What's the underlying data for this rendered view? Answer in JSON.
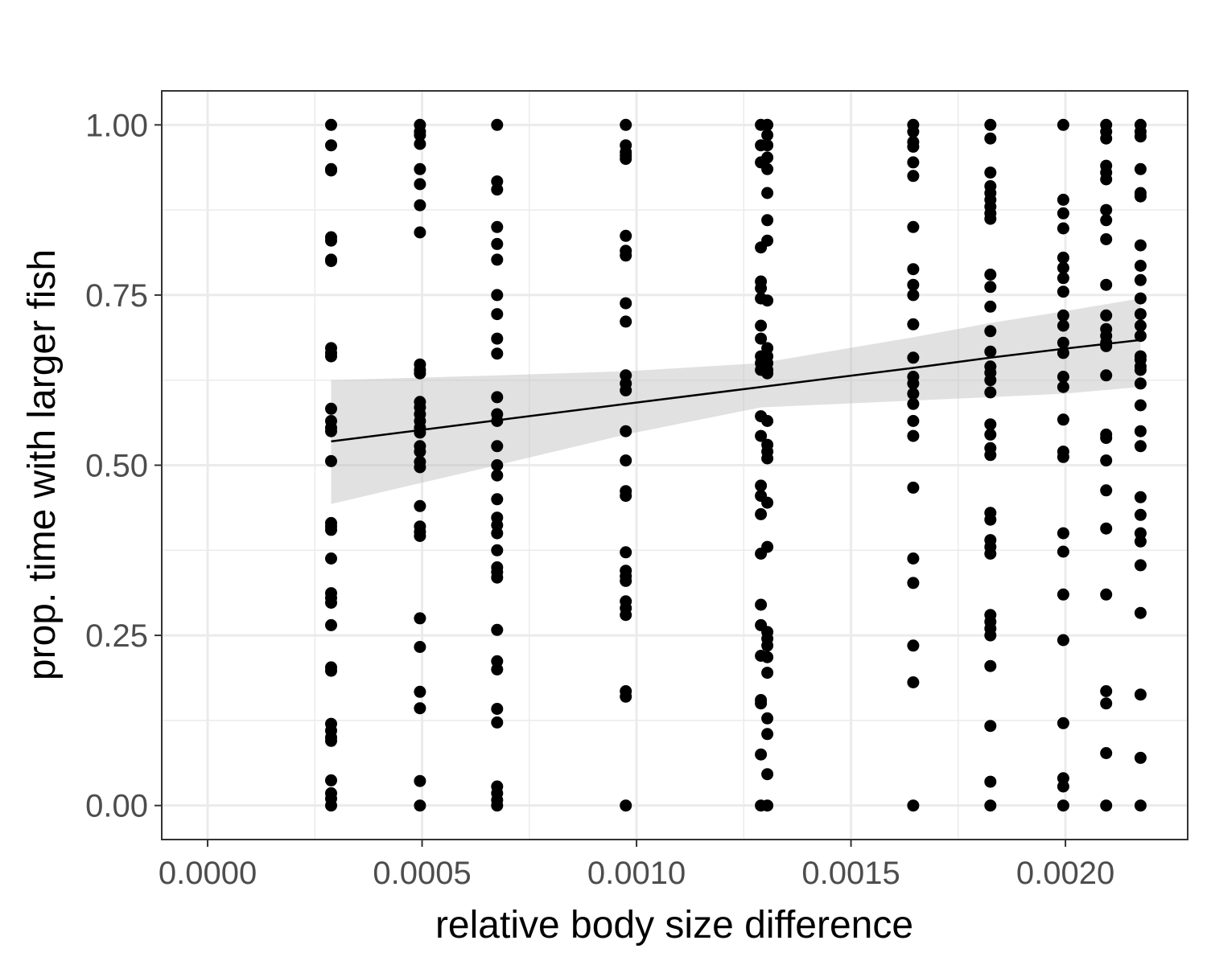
{
  "chart_data": {
    "type": "scatter",
    "title": "",
    "xlabel": "relative body size difference",
    "ylabel": "prop. time with larger fish",
    "xlim": [
      -0.000107,
      0.002285
    ],
    "ylim": [
      -0.05,
      1.05
    ],
    "x_ticks": [
      0.0,
      0.0005,
      0.001,
      0.0015,
      0.002
    ],
    "x_tick_labels": [
      "0.0000",
      "0.0005",
      "0.0010",
      "0.0015",
      "0.0020"
    ],
    "y_ticks": [
      0.0,
      0.25,
      0.5,
      0.75,
      1.0
    ],
    "y_tick_labels": [
      "0.00",
      "0.25",
      "0.50",
      "0.75",
      "1.00"
    ],
    "grid": true,
    "theme": "black-and-white",
    "colors": {
      "points": "#000000",
      "fit_line": "#000000",
      "ribbon": "#bdbdbd",
      "grid": "#ebebeb",
      "panel_border": "#333333"
    },
    "groups": [
      {
        "x": 0.000288,
        "y": [
          1.0,
          0.97,
          0.935,
          0.933,
          0.835,
          0.83,
          0.802,
          0.8,
          0.672,
          0.665,
          0.66,
          0.583,
          0.565,
          0.555,
          0.55,
          0.506,
          0.415,
          0.41,
          0.405,
          0.363,
          0.312,
          0.305,
          0.298,
          0.265,
          0.203,
          0.198,
          0.12,
          0.11,
          0.1,
          0.095,
          0.037,
          0.018,
          0.01,
          0.0
        ]
      },
      {
        "x": 0.000495,
        "y": [
          1.0,
          0.99,
          0.985,
          0.972,
          0.935,
          0.913,
          0.882,
          0.842,
          0.648,
          0.64,
          0.635,
          0.593,
          0.585,
          0.575,
          0.565,
          0.555,
          0.548,
          0.528,
          0.52,
          0.505,
          0.497,
          0.44,
          0.41,
          0.402,
          0.396,
          0.275,
          0.233,
          0.167,
          0.143,
          0.036,
          0.0
        ]
      },
      {
        "x": 0.000675,
        "y": [
          1.0,
          0.917,
          0.905,
          0.85,
          0.825,
          0.802,
          0.75,
          0.722,
          0.686,
          0.664,
          0.6,
          0.575,
          0.565,
          0.528,
          0.5,
          0.485,
          0.45,
          0.423,
          0.412,
          0.4,
          0.375,
          0.35,
          0.343,
          0.335,
          0.258,
          0.212,
          0.2,
          0.142,
          0.122,
          0.028,
          0.018,
          0.008,
          0.0
        ]
      },
      {
        "x": 0.000975,
        "y": [
          1.0,
          0.97,
          0.96,
          0.955,
          0.95,
          0.837,
          0.815,
          0.808,
          0.738,
          0.711,
          0.632,
          0.62,
          0.61,
          0.55,
          0.507,
          0.462,
          0.455,
          0.372,
          0.345,
          0.337,
          0.33,
          0.3,
          0.29,
          0.28,
          0.168,
          0.16,
          0.0
        ]
      },
      {
        "x": 0.00129,
        "y": [
          1.0,
          0.97,
          0.945,
          0.82,
          0.77,
          0.76,
          0.745,
          0.705,
          0.686,
          0.66,
          0.65,
          0.64,
          0.572,
          0.543,
          0.47,
          0.455,
          0.428,
          0.37,
          0.295,
          0.265,
          0.22,
          0.155,
          0.15,
          0.075,
          0.0
        ]
      },
      {
        "x": 0.001305,
        "y": [
          1.0,
          0.985,
          0.97,
          0.952,
          0.935,
          0.9,
          0.86,
          0.83,
          0.742,
          0.672,
          0.66,
          0.65,
          0.64,
          0.635,
          0.565,
          0.53,
          0.52,
          0.51,
          0.445,
          0.38,
          0.255,
          0.245,
          0.235,
          0.218,
          0.195,
          0.128,
          0.105,
          0.046,
          0.0
        ]
      },
      {
        "x": 0.001645,
        "y": [
          1.0,
          0.99,
          0.975,
          0.968,
          0.945,
          0.925,
          0.85,
          0.788,
          0.765,
          0.75,
          0.707,
          0.658,
          0.63,
          0.62,
          0.605,
          0.59,
          0.565,
          0.543,
          0.467,
          0.363,
          0.327,
          0.235,
          0.181,
          0.0
        ]
      },
      {
        "x": 0.001825,
        "y": [
          1.0,
          0.98,
          0.93,
          0.91,
          0.9,
          0.89,
          0.88,
          0.87,
          0.862,
          0.78,
          0.762,
          0.733,
          0.697,
          0.667,
          0.645,
          0.636,
          0.625,
          0.607,
          0.56,
          0.545,
          0.525,
          0.515,
          0.43,
          0.42,
          0.39,
          0.38,
          0.37,
          0.28,
          0.27,
          0.26,
          0.25,
          0.205,
          0.117,
          0.035,
          0.0
        ]
      },
      {
        "x": 0.001995,
        "y": [
          1.0,
          0.89,
          0.87,
          0.848,
          0.805,
          0.79,
          0.775,
          0.755,
          0.72,
          0.705,
          0.68,
          0.665,
          0.63,
          0.615,
          0.567,
          0.52,
          0.512,
          0.4,
          0.373,
          0.31,
          0.243,
          0.121,
          0.04,
          0.028,
          0.0
        ]
      },
      {
        "x": 0.002095,
        "y": [
          1.0,
          0.99,
          0.98,
          0.94,
          0.93,
          0.92,
          0.875,
          0.86,
          0.832,
          0.765,
          0.72,
          0.7,
          0.69,
          0.68,
          0.675,
          0.632,
          0.545,
          0.54,
          0.507,
          0.463,
          0.407,
          0.31,
          0.168,
          0.15,
          0.077,
          0.0
        ]
      },
      {
        "x": 0.002175,
        "y": [
          1.0,
          0.99,
          0.983,
          0.935,
          0.9,
          0.895,
          0.823,
          0.793,
          0.772,
          0.745,
          0.722,
          0.705,
          0.69,
          0.66,
          0.655,
          0.645,
          0.64,
          0.62,
          0.588,
          0.55,
          0.528,
          0.453,
          0.427,
          0.4,
          0.388,
          0.353,
          0.283,
          0.163,
          0.07,
          0.0
        ]
      }
    ],
    "fit": {
      "method": "linear",
      "x": [
        0.000288,
        0.000675,
        0.000975,
        0.00129,
        0.001645,
        0.001825,
        0.001995,
        0.002175
      ],
      "y": [
        0.535,
        0.566,
        0.59,
        0.615,
        0.643,
        0.658,
        0.671,
        0.684
      ],
      "lower": [
        0.443,
        0.5,
        0.545,
        0.585,
        0.595,
        0.6,
        0.605,
        0.615
      ],
      "upper": [
        0.625,
        0.632,
        0.638,
        0.65,
        0.688,
        0.709,
        0.726,
        0.745
      ]
    }
  }
}
